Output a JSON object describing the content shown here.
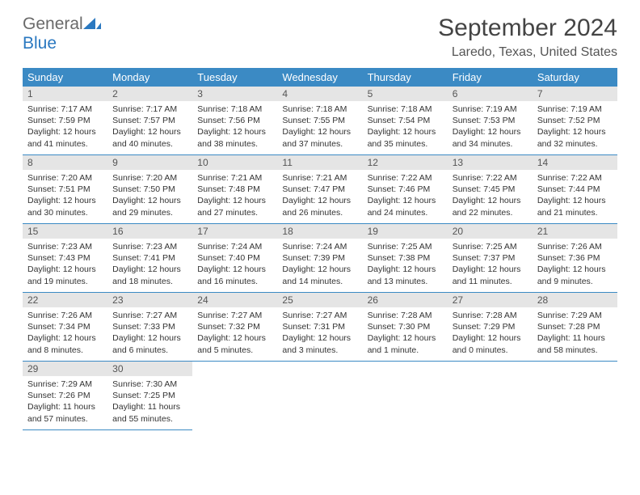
{
  "logo": {
    "word1": "General",
    "word2": "Blue"
  },
  "title": "September 2024",
  "location": "Laredo, Texas, United States",
  "colors": {
    "header_bg": "#3b8ac4",
    "header_text": "#ffffff",
    "daynum_bg": "#e5e5e5",
    "border": "#3b8ac4",
    "logo_gray": "#6a6a6a",
    "logo_blue": "#2a78c0"
  },
  "weekdays": [
    "Sunday",
    "Monday",
    "Tuesday",
    "Wednesday",
    "Thursday",
    "Friday",
    "Saturday"
  ],
  "weeks": [
    [
      {
        "n": "1",
        "sr": "Sunrise: 7:17 AM",
        "ss": "Sunset: 7:59 PM",
        "dl1": "Daylight: 12 hours",
        "dl2": "and 41 minutes."
      },
      {
        "n": "2",
        "sr": "Sunrise: 7:17 AM",
        "ss": "Sunset: 7:57 PM",
        "dl1": "Daylight: 12 hours",
        "dl2": "and 40 minutes."
      },
      {
        "n": "3",
        "sr": "Sunrise: 7:18 AM",
        "ss": "Sunset: 7:56 PM",
        "dl1": "Daylight: 12 hours",
        "dl2": "and 38 minutes."
      },
      {
        "n": "4",
        "sr": "Sunrise: 7:18 AM",
        "ss": "Sunset: 7:55 PM",
        "dl1": "Daylight: 12 hours",
        "dl2": "and 37 minutes."
      },
      {
        "n": "5",
        "sr": "Sunrise: 7:18 AM",
        "ss": "Sunset: 7:54 PM",
        "dl1": "Daylight: 12 hours",
        "dl2": "and 35 minutes."
      },
      {
        "n": "6",
        "sr": "Sunrise: 7:19 AM",
        "ss": "Sunset: 7:53 PM",
        "dl1": "Daylight: 12 hours",
        "dl2": "and 34 minutes."
      },
      {
        "n": "7",
        "sr": "Sunrise: 7:19 AM",
        "ss": "Sunset: 7:52 PM",
        "dl1": "Daylight: 12 hours",
        "dl2": "and 32 minutes."
      }
    ],
    [
      {
        "n": "8",
        "sr": "Sunrise: 7:20 AM",
        "ss": "Sunset: 7:51 PM",
        "dl1": "Daylight: 12 hours",
        "dl2": "and 30 minutes."
      },
      {
        "n": "9",
        "sr": "Sunrise: 7:20 AM",
        "ss": "Sunset: 7:50 PM",
        "dl1": "Daylight: 12 hours",
        "dl2": "and 29 minutes."
      },
      {
        "n": "10",
        "sr": "Sunrise: 7:21 AM",
        "ss": "Sunset: 7:48 PM",
        "dl1": "Daylight: 12 hours",
        "dl2": "and 27 minutes."
      },
      {
        "n": "11",
        "sr": "Sunrise: 7:21 AM",
        "ss": "Sunset: 7:47 PM",
        "dl1": "Daylight: 12 hours",
        "dl2": "and 26 minutes."
      },
      {
        "n": "12",
        "sr": "Sunrise: 7:22 AM",
        "ss": "Sunset: 7:46 PM",
        "dl1": "Daylight: 12 hours",
        "dl2": "and 24 minutes."
      },
      {
        "n": "13",
        "sr": "Sunrise: 7:22 AM",
        "ss": "Sunset: 7:45 PM",
        "dl1": "Daylight: 12 hours",
        "dl2": "and 22 minutes."
      },
      {
        "n": "14",
        "sr": "Sunrise: 7:22 AM",
        "ss": "Sunset: 7:44 PM",
        "dl1": "Daylight: 12 hours",
        "dl2": "and 21 minutes."
      }
    ],
    [
      {
        "n": "15",
        "sr": "Sunrise: 7:23 AM",
        "ss": "Sunset: 7:43 PM",
        "dl1": "Daylight: 12 hours",
        "dl2": "and 19 minutes."
      },
      {
        "n": "16",
        "sr": "Sunrise: 7:23 AM",
        "ss": "Sunset: 7:41 PM",
        "dl1": "Daylight: 12 hours",
        "dl2": "and 18 minutes."
      },
      {
        "n": "17",
        "sr": "Sunrise: 7:24 AM",
        "ss": "Sunset: 7:40 PM",
        "dl1": "Daylight: 12 hours",
        "dl2": "and 16 minutes."
      },
      {
        "n": "18",
        "sr": "Sunrise: 7:24 AM",
        "ss": "Sunset: 7:39 PM",
        "dl1": "Daylight: 12 hours",
        "dl2": "and 14 minutes."
      },
      {
        "n": "19",
        "sr": "Sunrise: 7:25 AM",
        "ss": "Sunset: 7:38 PM",
        "dl1": "Daylight: 12 hours",
        "dl2": "and 13 minutes."
      },
      {
        "n": "20",
        "sr": "Sunrise: 7:25 AM",
        "ss": "Sunset: 7:37 PM",
        "dl1": "Daylight: 12 hours",
        "dl2": "and 11 minutes."
      },
      {
        "n": "21",
        "sr": "Sunrise: 7:26 AM",
        "ss": "Sunset: 7:36 PM",
        "dl1": "Daylight: 12 hours",
        "dl2": "and 9 minutes."
      }
    ],
    [
      {
        "n": "22",
        "sr": "Sunrise: 7:26 AM",
        "ss": "Sunset: 7:34 PM",
        "dl1": "Daylight: 12 hours",
        "dl2": "and 8 minutes."
      },
      {
        "n": "23",
        "sr": "Sunrise: 7:27 AM",
        "ss": "Sunset: 7:33 PM",
        "dl1": "Daylight: 12 hours",
        "dl2": "and 6 minutes."
      },
      {
        "n": "24",
        "sr": "Sunrise: 7:27 AM",
        "ss": "Sunset: 7:32 PM",
        "dl1": "Daylight: 12 hours",
        "dl2": "and 5 minutes."
      },
      {
        "n": "25",
        "sr": "Sunrise: 7:27 AM",
        "ss": "Sunset: 7:31 PM",
        "dl1": "Daylight: 12 hours",
        "dl2": "and 3 minutes."
      },
      {
        "n": "26",
        "sr": "Sunrise: 7:28 AM",
        "ss": "Sunset: 7:30 PM",
        "dl1": "Daylight: 12 hours",
        "dl2": "and 1 minute."
      },
      {
        "n": "27",
        "sr": "Sunrise: 7:28 AM",
        "ss": "Sunset: 7:29 PM",
        "dl1": "Daylight: 12 hours",
        "dl2": "and 0 minutes."
      },
      {
        "n": "28",
        "sr": "Sunrise: 7:29 AM",
        "ss": "Sunset: 7:28 PM",
        "dl1": "Daylight: 11 hours",
        "dl2": "and 58 minutes."
      }
    ],
    [
      {
        "n": "29",
        "sr": "Sunrise: 7:29 AM",
        "ss": "Sunset: 7:26 PM",
        "dl1": "Daylight: 11 hours",
        "dl2": "and 57 minutes."
      },
      {
        "n": "30",
        "sr": "Sunrise: 7:30 AM",
        "ss": "Sunset: 7:25 PM",
        "dl1": "Daylight: 11 hours",
        "dl2": "and 55 minutes."
      },
      null,
      null,
      null,
      null,
      null
    ]
  ]
}
